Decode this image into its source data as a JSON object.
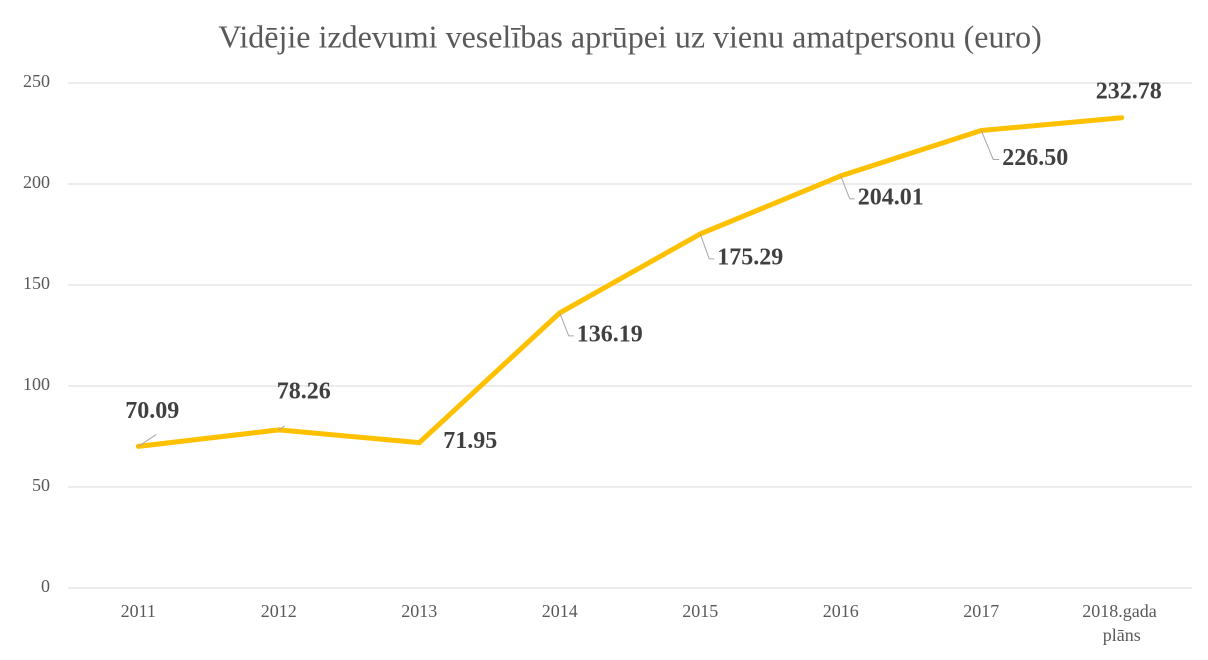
{
  "chart_data": {
    "type": "line",
    "title": "Vidējie izdevumi veselības aprūpei uz vienu amatpersonu (euro)",
    "categories": [
      "2011",
      "2012",
      "2013",
      "2014",
      "2015",
      "2016",
      "2017",
      "2018.gada plāns"
    ],
    "series": [
      {
        "name": "Vidējie izdevumi",
        "color": "#ffc000",
        "values": [
          70.09,
          78.26,
          71.95,
          136.19,
          175.29,
          204.01,
          226.5,
          232.78
        ],
        "value_labels": [
          "70.09",
          "78.26",
          "71.95",
          "136.19",
          "175.29",
          "204.01",
          "226.50",
          "232.78"
        ]
      }
    ],
    "ylim": [
      0,
      250
    ],
    "yticks": [
      0,
      50,
      100,
      150,
      200,
      250
    ],
    "grid": true
  }
}
